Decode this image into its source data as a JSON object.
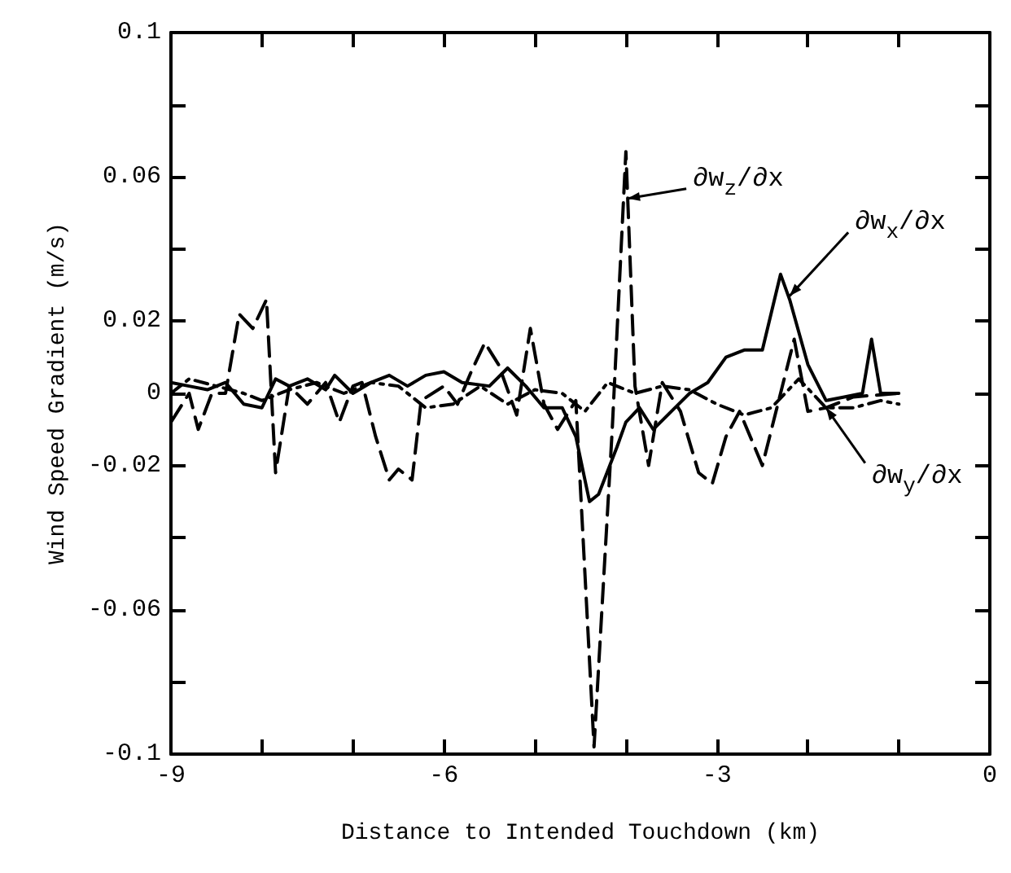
{
  "chart_data": {
    "type": "line",
    "xlabel": "Distance to Intended Touchdown (km)",
    "ylabel": "Wind Speed Gradient (m/s)",
    "xlim": [
      -9,
      0
    ],
    "xticks": [
      -9,
      {
        "value": -8,
        "label": null
      },
      {
        "value": -7,
        "label": null
      },
      -6,
      {
        "value": -5,
        "label": null
      },
      {
        "value": -4,
        "label": null
      },
      -3,
      {
        "value": -2,
        "label": null
      },
      {
        "value": -1,
        "label": null
      },
      0
    ],
    "ylim": [
      -0.1,
      0.1
    ],
    "yticks": [
      -0.1,
      {
        "value": -0.08,
        "label": null
      },
      -0.06,
      {
        "value": -0.04,
        "label": null
      },
      -0.02,
      0,
      0.02,
      {
        "value": 0.04,
        "label": null
      },
      0.06,
      {
        "value": 0.08,
        "label": null
      },
      0.1
    ],
    "grid": false,
    "marker": "none",
    "series": [
      {
        "color": "#000000",
        "line_style": "solid",
        "x": [
          -9.0,
          -8.8,
          -8.6,
          -8.4,
          -8.2,
          -8.0,
          -7.85,
          -7.7,
          -7.5,
          -7.3,
          -7.2,
          -7.0,
          -6.8,
          -6.6,
          -6.4,
          -6.2,
          -6.0,
          -5.8,
          -5.5,
          -5.3,
          -5.1,
          -4.9,
          -4.7,
          -4.55,
          -4.4,
          -4.3,
          -4.1,
          -4.0,
          -3.85,
          -3.7,
          -3.5,
          -3.3,
          -3.1,
          -2.9,
          -2.7,
          -2.5,
          -2.3,
          -2.2,
          -2.0,
          -1.8,
          -1.6,
          -1.4,
          -1.3,
          -1.2,
          -1.0
        ],
        "values": [
          0.003,
          0.002,
          0.001,
          0.003,
          -0.003,
          -0.004,
          0.004,
          0.002,
          0.004,
          0.001,
          0.005,
          0.0,
          0.003,
          0.005,
          0.002,
          0.005,
          0.006,
          0.003,
          0.002,
          0.007,
          0.002,
          -0.004,
          -0.004,
          -0.012,
          -0.03,
          -0.028,
          -0.015,
          -0.008,
          -0.004,
          -0.01,
          -0.005,
          0.0,
          0.003,
          0.01,
          0.012,
          0.012,
          0.033,
          0.026,
          0.008,
          -0.002,
          -0.001,
          0.0,
          0.015,
          0.0,
          0.0
        ]
      },
      {
        "color": "#000000",
        "line_style": "dashed",
        "x": [
          -9.0,
          -8.8,
          -8.7,
          -8.55,
          -8.4,
          -8.25,
          -8.1,
          -7.95,
          -7.85,
          -7.7,
          -7.5,
          -7.3,
          -7.15,
          -7.0,
          -6.9,
          -6.75,
          -6.6,
          -6.5,
          -6.35,
          -6.25,
          -6.0,
          -5.85,
          -5.7,
          -5.55,
          -5.4,
          -5.2,
          -5.05,
          -4.9,
          -4.75,
          -4.55,
          -4.35,
          -4.15,
          -4.0,
          -3.9,
          -3.75,
          -3.6,
          -3.4,
          -3.2,
          -3.05,
          -2.9,
          -2.75,
          -2.5,
          -2.3,
          -2.15,
          -2.0,
          -1.8,
          -1.5,
          -1.0
        ],
        "values": [
          -0.008,
          0.0,
          -0.01,
          0.0,
          0.0,
          0.022,
          0.018,
          0.026,
          -0.022,
          0.002,
          -0.003,
          0.003,
          -0.008,
          0.002,
          0.003,
          -0.012,
          -0.024,
          -0.021,
          -0.024,
          -0.002,
          0.002,
          -0.003,
          0.006,
          0.014,
          0.008,
          -0.006,
          0.018,
          -0.003,
          -0.01,
          -0.002,
          -0.098,
          -0.01,
          0.067,
          0.002,
          -0.02,
          0.003,
          -0.005,
          -0.022,
          -0.025,
          -0.012,
          -0.005,
          -0.02,
          0.0,
          0.015,
          -0.005,
          -0.004,
          -0.001,
          0.0
        ]
      },
      {
        "color": "#000000",
        "line_style": "dotted",
        "x": [
          -9.0,
          -8.8,
          -8.5,
          -8.2,
          -8.0,
          -7.7,
          -7.4,
          -7.1,
          -6.8,
          -6.5,
          -6.2,
          -5.9,
          -5.6,
          -5.3,
          -5.0,
          -4.7,
          -4.45,
          -4.2,
          -3.9,
          -3.6,
          -3.3,
          -3.0,
          -2.7,
          -2.4,
          -2.1,
          -1.8,
          -1.5,
          -1.2,
          -1.0
        ],
        "values": [
          0.0,
          0.004,
          0.002,
          0.0,
          -0.002,
          0.001,
          0.003,
          0.0,
          0.003,
          0.002,
          -0.004,
          -0.003,
          0.002,
          -0.003,
          0.001,
          0.0,
          -0.005,
          0.003,
          0.0,
          0.002,
          0.001,
          -0.003,
          -0.006,
          -0.004,
          0.004,
          -0.004,
          -0.004,
          -0.002,
          -0.003
        ]
      }
    ],
    "annotations": [
      {
        "text": "∂w$_{x}$/∂x",
        "x": -2.2,
        "y": 0.027
      },
      {
        "text": "∂w$_{z}$/∂x",
        "x": -3.98,
        "y": 0.054
      },
      {
        "text": "∂w$_{y}$/∂x",
        "x": -1.8,
        "y": -0.004
      }
    ]
  }
}
